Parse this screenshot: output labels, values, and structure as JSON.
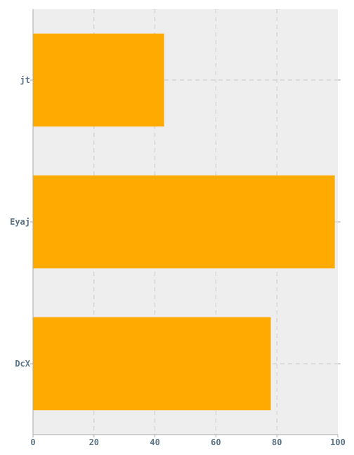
{
  "chart_data": {
    "type": "bar",
    "orientation": "horizontal",
    "categories": [
      "jt",
      "Eyaj",
      "DcX"
    ],
    "values": [
      43,
      99,
      78
    ],
    "xlim": [
      0,
      100
    ],
    "xticks": [
      0,
      20,
      40,
      60,
      80,
      100
    ],
    "title": "",
    "xlabel": "",
    "ylabel": "",
    "grid": true,
    "legend": "none",
    "colors": {
      "bar": "#FFAA00",
      "plot_background": "#EEEEEE",
      "grid": "#C8C8C8",
      "axis": "#AAAAAA",
      "tick_label": "#5B7384"
    }
  }
}
